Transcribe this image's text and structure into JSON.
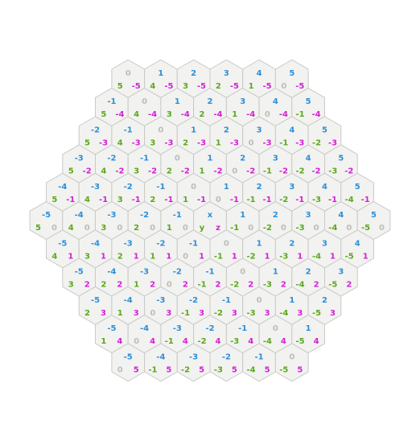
{
  "colors": {
    "x": "#2b8fd9",
    "y": "#5aa81a",
    "z": "#d61fd6",
    "faint": "#bdbdba"
  },
  "radius": 5,
  "center_labels": {
    "x": "x",
    "y": "y",
    "z": "z"
  }
}
